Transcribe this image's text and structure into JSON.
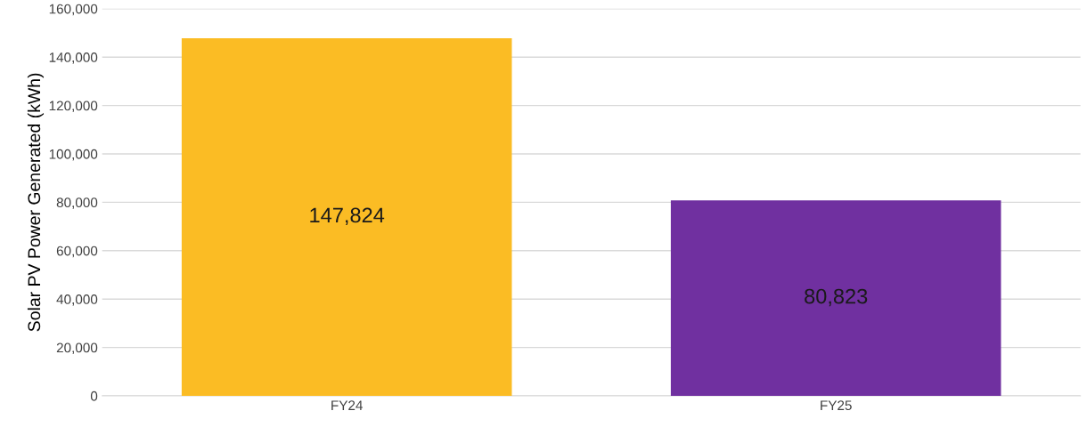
{
  "chart_data": {
    "type": "bar",
    "ylabel": "Solar PV Power Generated (kWh)",
    "categories": [
      "FY24",
      "FY25"
    ],
    "values": [
      147824,
      80823
    ],
    "colors": [
      "#fbbc24",
      "#7030a0"
    ],
    "value_labels": [
      "147,824",
      "80,823"
    ],
    "ylim": [
      0,
      160000
    ],
    "yticks": [
      {
        "value": 0,
        "label": "0"
      },
      {
        "value": 20000,
        "label": "20,000"
      },
      {
        "value": 40000,
        "label": "40,000"
      },
      {
        "value": 60000,
        "label": "60,000"
      },
      {
        "value": 80000,
        "label": "80,000"
      },
      {
        "value": 100000,
        "label": "100,000"
      },
      {
        "value": 120000,
        "label": "120,000"
      },
      {
        "value": 140000,
        "label": "140,000"
      },
      {
        "value": 160000,
        "label": "160,000"
      }
    ],
    "grid": "y",
    "legend": false
  }
}
